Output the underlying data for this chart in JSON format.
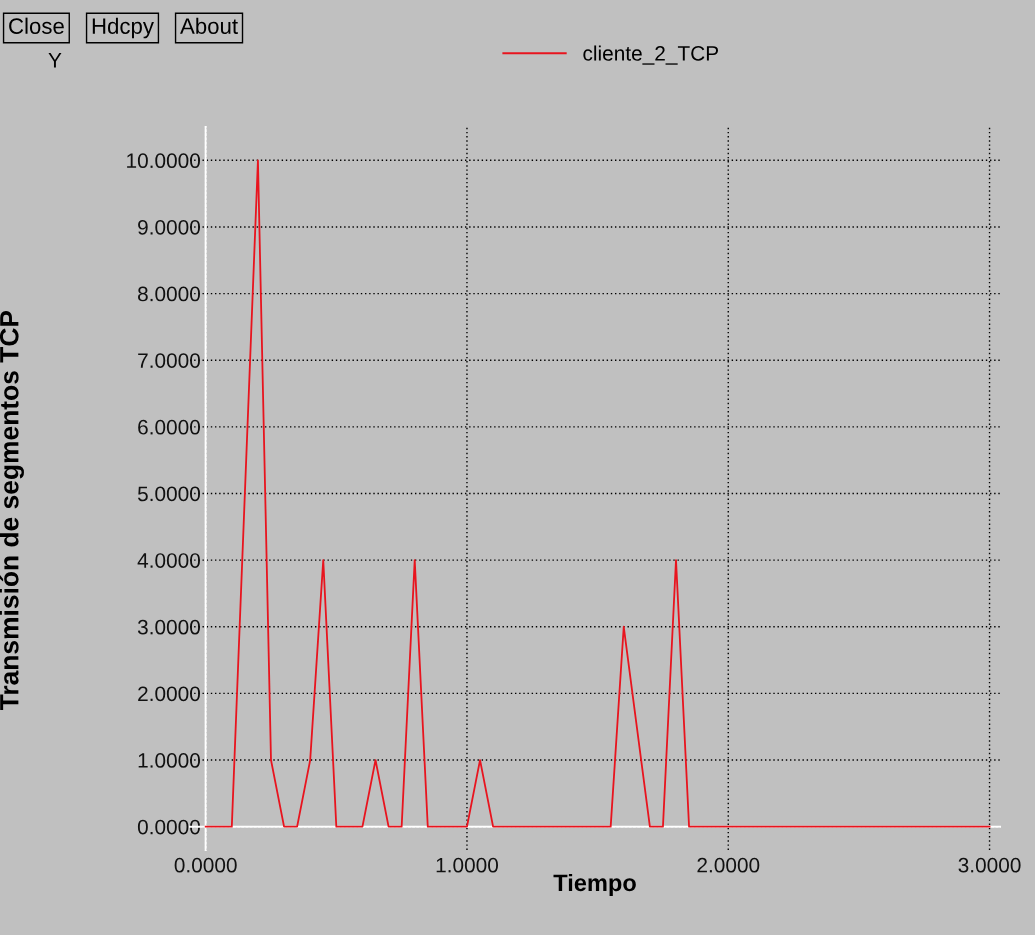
{
  "chart_data": {
    "type": "line",
    "xlabel": "Tiempo",
    "ylabel": "Transmisión de segmentos TCP",
    "annotations": [
      "Close",
      "Hdcpy",
      "About",
      "Y"
    ],
    "series": [
      {
        "name": "cliente_2_TCP",
        "color": "#e8141e",
        "x": [
          0.0,
          0.1,
          0.2,
          0.25,
          0.3,
          0.35,
          0.4,
          0.45,
          0.5,
          0.6,
          0.65,
          0.7,
          0.75,
          0.8,
          0.85,
          1.0,
          1.05,
          1.1,
          1.55,
          1.6,
          1.7,
          1.75,
          1.8,
          1.85,
          3.0
        ],
        "values": [
          0,
          0,
          10,
          1,
          0,
          0,
          1,
          4,
          0,
          0,
          1,
          0,
          0,
          4,
          0,
          0,
          1,
          0,
          0,
          3,
          0,
          0,
          4,
          0,
          0
        ]
      }
    ],
    "xlim": [
      -0.06,
      3.04
    ],
    "ylim": [
      -0.35,
      10.5
    ],
    "xticks": [
      {
        "value": 0,
        "label": "0.0000"
      },
      {
        "value": 1,
        "label": "1.0000"
      },
      {
        "value": 2,
        "label": "2.0000"
      },
      {
        "value": 3,
        "label": "3.0000"
      }
    ],
    "yticks": [
      {
        "value": 0,
        "label": "0.0000"
      },
      {
        "value": 1,
        "label": "1.0000"
      },
      {
        "value": 2,
        "label": "2.0000"
      },
      {
        "value": 3,
        "label": "3.0000"
      },
      {
        "value": 4,
        "label": "4.0000"
      },
      {
        "value": 5,
        "label": "5.0000"
      },
      {
        "value": 6,
        "label": "6.0000"
      },
      {
        "value": 7,
        "label": "7.0000"
      },
      {
        "value": 8,
        "label": "8.0000"
      },
      {
        "value": 9,
        "label": "9.0000"
      },
      {
        "value": 10,
        "label": "10.0000"
      }
    ],
    "grid": true,
    "legend": "top",
    "marker": "none",
    "line_style": "solid"
  }
}
